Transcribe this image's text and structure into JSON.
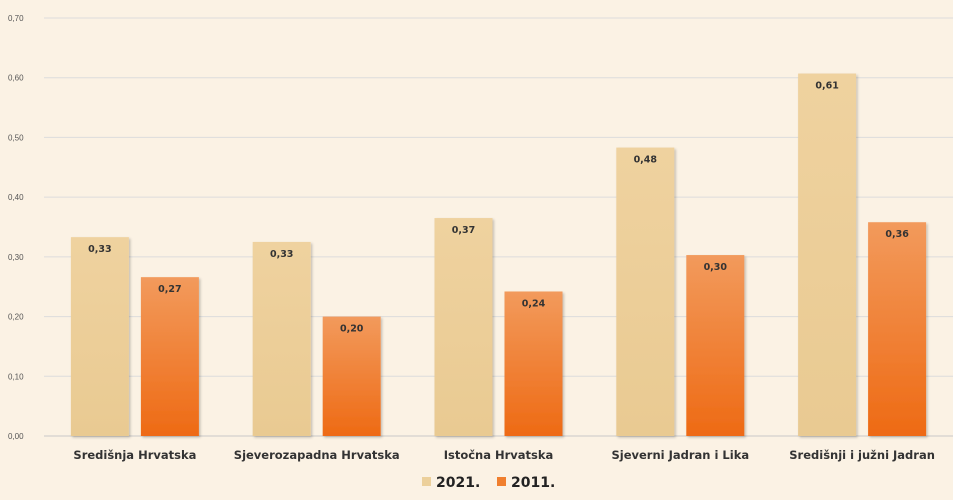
{
  "chart_data": {
    "type": "bar",
    "categories": [
      "Središnja Hrvatska",
      "Sjeverozapadna Hrvatska",
      "Istočna Hrvatska",
      "Sjeverni Jadran i Lika",
      "Središnji i južni Jadran"
    ],
    "series": [
      {
        "name": "2021.",
        "values": [
          0.333,
          0.325,
          0.365,
          0.483,
          0.607
        ],
        "labels": [
          "0,33",
          "0,33",
          "0,37",
          "0,48",
          "0,61"
        ],
        "color": "#ecd09b"
      },
      {
        "name": "2011.",
        "values": [
          0.266,
          0.2,
          0.242,
          0.303,
          0.358
        ],
        "labels": [
          "0,27",
          "0,20",
          "0,24",
          "0,30",
          "0,36"
        ],
        "color": "#f07f2e"
      }
    ],
    "ylim": [
      0,
      0.7
    ],
    "yticks": [
      "0,00",
      "0,10",
      "0,20",
      "0,30",
      "0,40",
      "0,50",
      "0,60",
      "0,70"
    ],
    "grid": true,
    "legend": "bottom-center",
    "title": "",
    "xlabel": "",
    "ylabel": ""
  }
}
